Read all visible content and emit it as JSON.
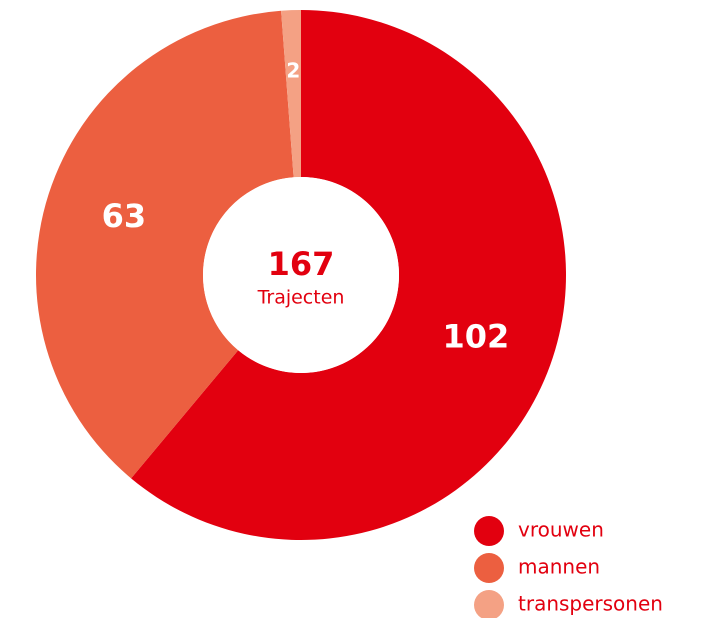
{
  "chart_data": {
    "type": "donut",
    "categories": [
      "vrouwen",
      "mannen",
      "transpersonen"
    ],
    "values": [
      102,
      63,
      2
    ],
    "colors": [
      "#e2000f",
      "#ec5f40",
      "#f4a184"
    ],
    "center_value": 167,
    "center_label": "Trajecten"
  }
}
